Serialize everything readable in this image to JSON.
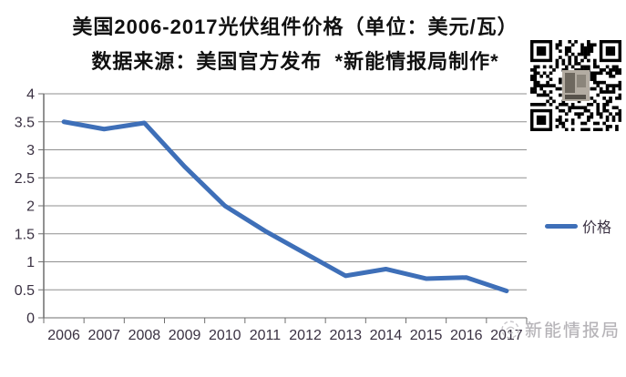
{
  "header": {
    "title": "美国2006-2017光伏组件价格（单位：美元/瓦）",
    "subtitle": "数据来源：美国官方发布  *新能情报局制作*"
  },
  "chart_data": {
    "type": "line",
    "title": "美国2006-2017光伏组件价格（单位：美元/瓦）",
    "categories": [
      "2006",
      "2007",
      "2008",
      "2009",
      "2010",
      "2011",
      "2012",
      "2013",
      "2014",
      "2015",
      "2016",
      "2017"
    ],
    "series": [
      {
        "name": "价格",
        "color": "#3e6fb8",
        "values": [
          3.5,
          3.37,
          3.48,
          2.7,
          2.0,
          1.55,
          1.15,
          0.75,
          0.87,
          0.7,
          0.72,
          0.48
        ]
      }
    ],
    "xlabel": "",
    "ylabel": "",
    "ylim": [
      0,
      4
    ],
    "y_tick_step": 0.5,
    "y_tick_labels": [
      "0",
      "0.5",
      "1",
      "1.5",
      "2",
      "2.5",
      "3",
      "3.5",
      "4"
    ],
    "grid": true,
    "legend_position": "right-middle"
  },
  "legend": {
    "items": [
      {
        "label": "价格",
        "color": "#3e6fb8"
      }
    ]
  },
  "watermark": {
    "text": "新能情报局"
  },
  "colors": {
    "background": "#ffffff",
    "line": "#3e6fb8",
    "grid": "#8f8f8f",
    "axis": "#6f6f6f",
    "axis_text": "#3a3142",
    "title_text": "#111111",
    "watermark_text": "#b4b2b6"
  }
}
